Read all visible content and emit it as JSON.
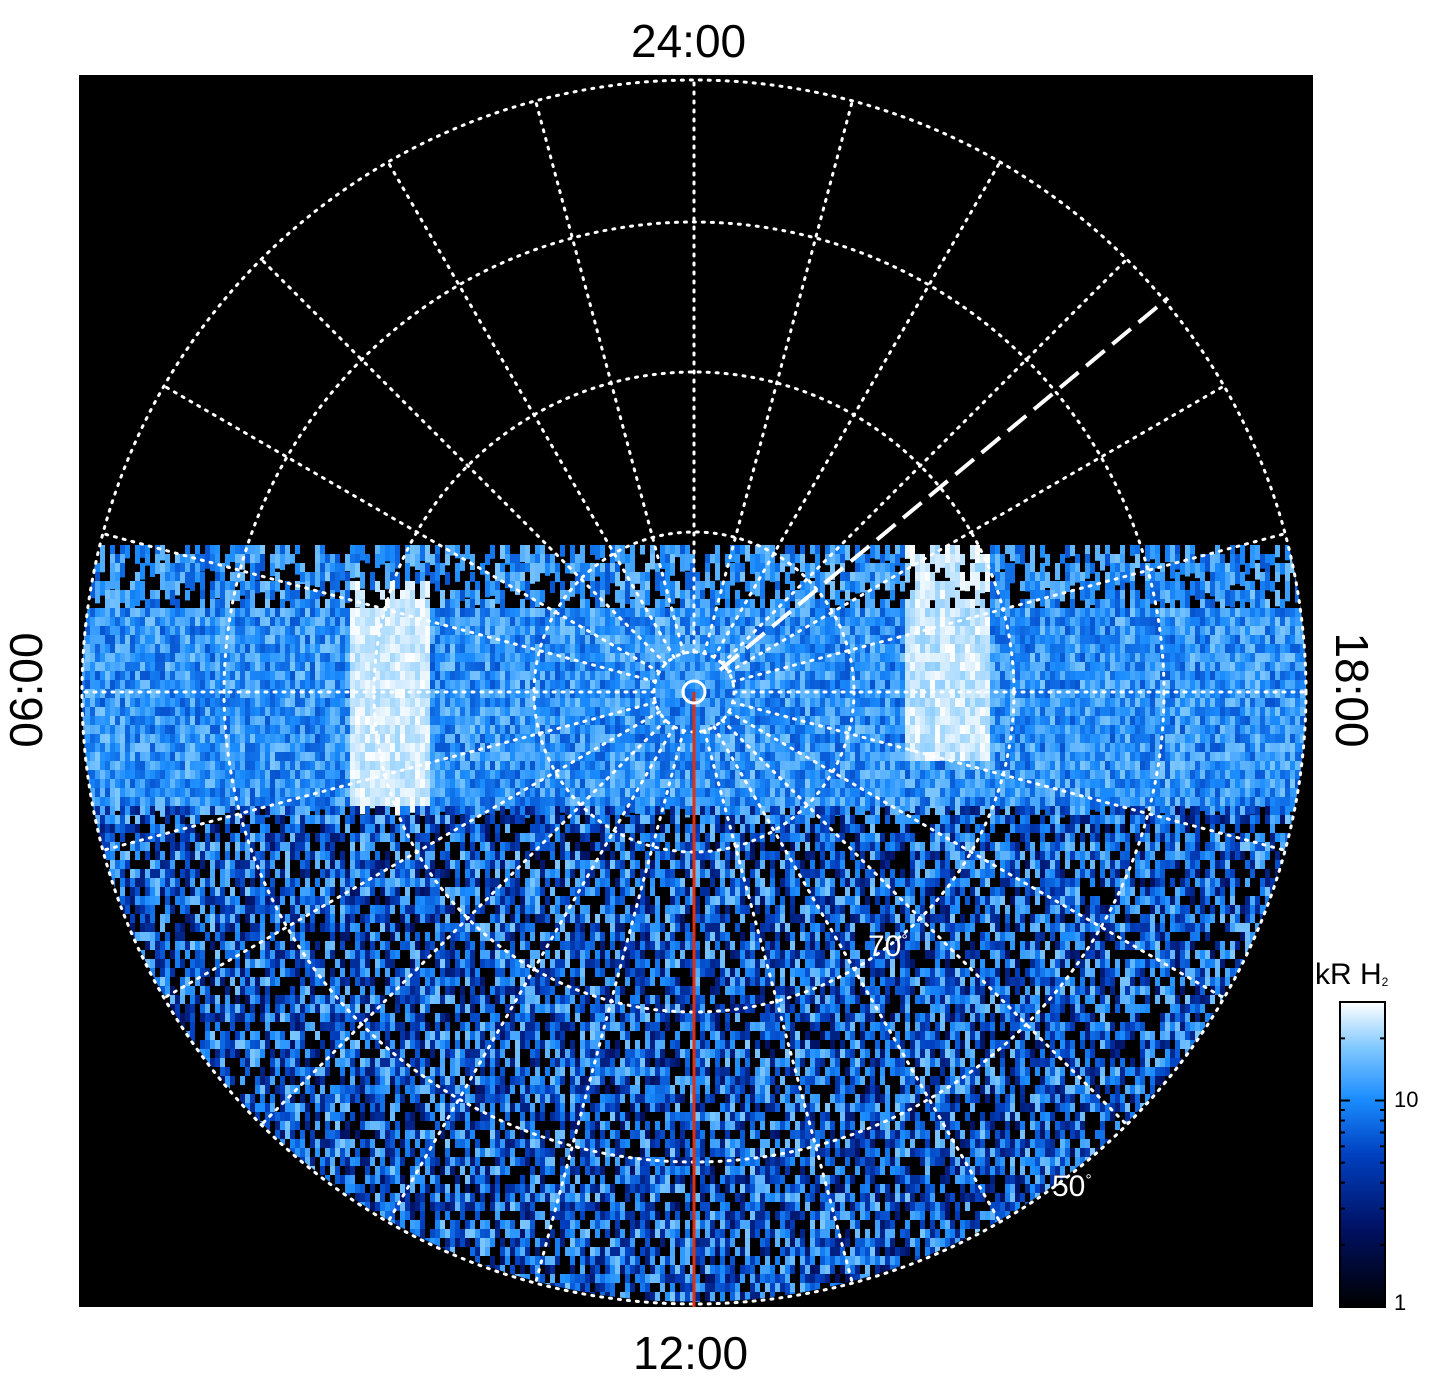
{
  "chart_data": {
    "type": "heatmap",
    "projection": "polar (local time vs. latitude)",
    "local_time_labels": {
      "top": "24:00",
      "bottom": "12:00",
      "left": "06:00",
      "right": "18:00"
    },
    "latitude_labels": [
      {
        "value": 70,
        "text": "70"
      },
      {
        "value": 50,
        "text": "50"
      }
    ],
    "colorbar": {
      "title": "kR H",
      "title_subscript": "2",
      "scale": "log",
      "range": [
        1,
        30
      ],
      "tick_labels": [
        "1",
        "10"
      ],
      "colormap": [
        "#000000",
        "#001060",
        "#0040c0",
        "#1a8cff",
        "#80c8ff",
        "#ffffff"
      ]
    },
    "grid": true,
    "grid_color": "#ffffff",
    "background_color": "#000000",
    "meridian_color": "#ff3300"
  }
}
